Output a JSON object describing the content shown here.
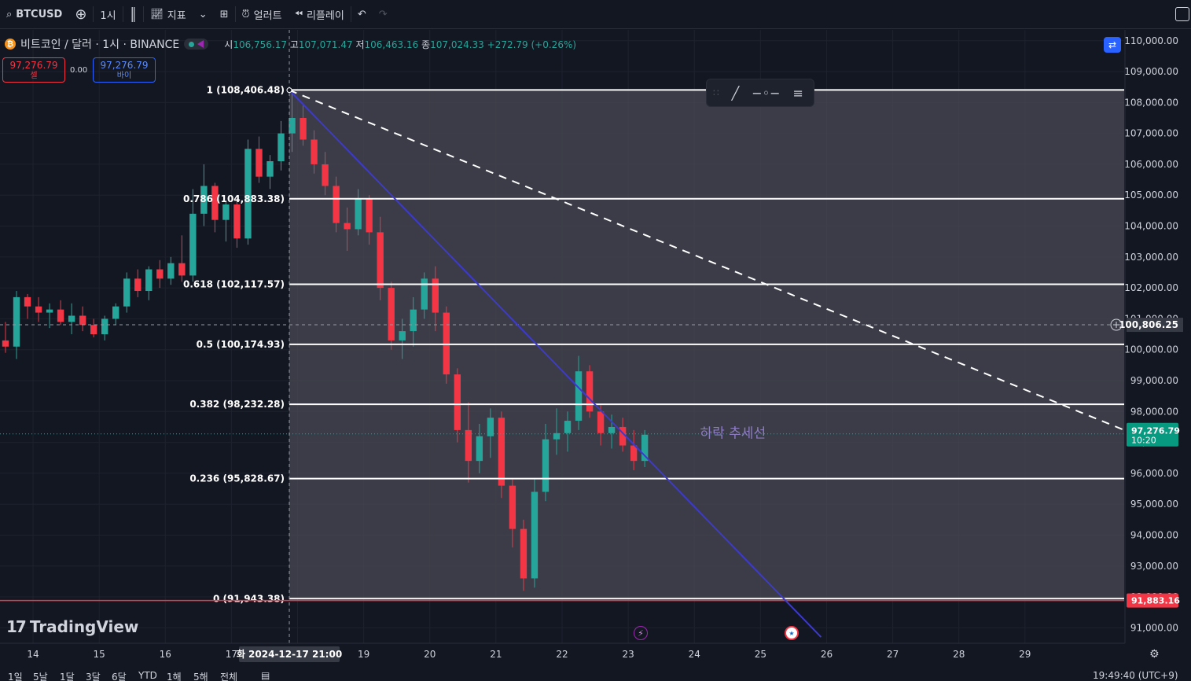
{
  "toolbar": {
    "symbol": "BTCUSD",
    "interval": "1시",
    "indicators": "지표",
    "alerts": "얼러트",
    "replay": "리플레이"
  },
  "legend": {
    "title": "비트코인 / 달러 · 1시 · BINANCE",
    "open_label": "시",
    "open": "106,756.17",
    "high_label": "고",
    "high": "107,071.47",
    "low_label": "저",
    "low": "106,463.16",
    "close_label": "종",
    "close": "107,024.33",
    "change": "+272.79 (+0.26%)"
  },
  "trade": {
    "sell_price": "97,276.79",
    "sell_label": "셀",
    "spread": "0.00",
    "buy_price": "97,276.79",
    "buy_label": "바이"
  },
  "watermark": "TradingView",
  "bottom_ranges": [
    "1일",
    "5날",
    "1달",
    "3달",
    "6달",
    "YTD",
    "1해",
    "5해",
    "전체"
  ],
  "clock": "19:49:40 (UTC+9)",
  "colors": {
    "up": "#26a69a",
    "down": "#f23645",
    "fib_line": "#ffffff",
    "trend": "#3d3acb",
    "fib_zone": "#4a4a54",
    "price_tag": "#089981",
    "low_tag": "#f23645"
  },
  "chart_data": {
    "type": "candlestick",
    "price_axis": {
      "ylim": [
        90500,
        110350
      ],
      "ticks": [
        110000,
        109000,
        108000,
        107000,
        106000,
        105000,
        104000,
        103000,
        102000,
        101000,
        100000,
        99000,
        98000,
        97000,
        96000,
        95000,
        94000,
        93000,
        92000,
        91000
      ],
      "tick_labels": [
        "110,000.00",
        "109,000.00",
        "108,000.00",
        "107,000.00",
        "106,000.00",
        "105,000.00",
        "104,000.00",
        "103,000.00",
        "102,000.00",
        "101,000.00",
        "100,000.00",
        "99,000.00",
        "98,000.00",
        "97,000.00",
        "96,000.00",
        "95,000.00",
        "94,000.00",
        "93,000.00",
        "92,000.00",
        "91,000.00"
      ]
    },
    "time_axis": {
      "start": "2024-12-13T12:00",
      "end": "2024-12-30T12:00",
      "tick_labels": [
        "14",
        "15",
        "16",
        "17",
        "18",
        "19",
        "20",
        "21",
        "22",
        "23",
        "24",
        "25",
        "26",
        "27",
        "28",
        "29"
      ],
      "crosshair_label": "화 2024-12-17  21:00"
    },
    "crosshair": {
      "time": "2024-12-17T21:00",
      "price": 100806.25,
      "price_label": "100,806.25"
    },
    "last_price": {
      "value": 97276.79,
      "label": "97,276.79",
      "countdown": "10:20"
    },
    "low_marker": {
      "value": 91883.16,
      "label": "91,883.16"
    },
    "fibonacci": {
      "start_time": "2024-12-17T21:00",
      "levels": [
        {
          "ratio": "1",
          "price": 108406.48,
          "label": "1 (108,406.48)"
        },
        {
          "ratio": "0.786",
          "price": 104883.38,
          "label": "0.786 (104,883.38)"
        },
        {
          "ratio": "0.618",
          "price": 102117.57,
          "label": "0.618 (102,117.57)"
        },
        {
          "ratio": "0.5",
          "price": 100174.93,
          "label": "0.5 (100,174.93)"
        },
        {
          "ratio": "0.382",
          "price": 98232.28,
          "label": "0.382 (98,232.28)"
        },
        {
          "ratio": "0.236",
          "price": 95828.67,
          "label": "0.236 (95,828.67)"
        },
        {
          "ratio": "0",
          "price": 91943.38,
          "label": "0 (91,943.38)"
        }
      ]
    },
    "trendlines": [
      {
        "name": "downtrend-solid",
        "style": "solid",
        "from": {
          "time": "2024-12-17T21:00",
          "price": 108400
        },
        "to": {
          "time": "2024-12-25T22:00",
          "price": 90700
        }
      },
      {
        "name": "downtrend-dashed",
        "style": "dashed",
        "from": {
          "time": "2024-12-17T21:00",
          "price": 108400
        },
        "to": {
          "time": "2024-12-30T12:00",
          "price": 97400
        }
      }
    ],
    "annotation": {
      "text": "하락 추세선",
      "time": "2024-12-24T14:00",
      "price": 97150
    },
    "candles_4h": [
      [
        "2024-12-13T12:00",
        100300,
        100900,
        99900,
        100100
      ],
      [
        "2024-12-13T16:00",
        100100,
        101900,
        99700,
        101700
      ],
      [
        "2024-12-13T20:00",
        101700,
        101800,
        101000,
        101400
      ],
      [
        "2024-12-14T00:00",
        101400,
        101700,
        100900,
        101200
      ],
      [
        "2024-12-14T04:00",
        101200,
        101500,
        100700,
        101300
      ],
      [
        "2024-12-14T08:00",
        101300,
        101600,
        100800,
        100900
      ],
      [
        "2024-12-14T12:00",
        100900,
        101500,
        100500,
        101100
      ],
      [
        "2024-12-14T16:00",
        101100,
        101400,
        100600,
        100800
      ],
      [
        "2024-12-14T20:00",
        100800,
        101000,
        100400,
        100500
      ],
      [
        "2024-12-15T00:00",
        100500,
        101100,
        100300,
        101000
      ],
      [
        "2024-12-15T04:00",
        101000,
        101500,
        100800,
        101400
      ],
      [
        "2024-12-15T08:00",
        101400,
        102500,
        101200,
        102300
      ],
      [
        "2024-12-15T12:00",
        102300,
        102600,
        101700,
        101900
      ],
      [
        "2024-12-15T16:00",
        101900,
        102700,
        101600,
        102600
      ],
      [
        "2024-12-15T20:00",
        102600,
        102900,
        102000,
        102300
      ],
      [
        "2024-12-16T00:00",
        102300,
        103000,
        102100,
        102800
      ],
      [
        "2024-12-16T04:00",
        102800,
        103700,
        102200,
        102400
      ],
      [
        "2024-12-16T08:00",
        102400,
        105200,
        102200,
        104400
      ],
      [
        "2024-12-16T12:00",
        104400,
        106000,
        104000,
        105300
      ],
      [
        "2024-12-16T16:00",
        105300,
        105400,
        103800,
        104200
      ],
      [
        "2024-12-16T20:00",
        104200,
        104800,
        103500,
        104700
      ],
      [
        "2024-12-17T00:00",
        104700,
        104900,
        103300,
        103600
      ],
      [
        "2024-12-17T04:00",
        103600,
        106800,
        103400,
        106500
      ],
      [
        "2024-12-17T08:00",
        106500,
        106900,
        105400,
        105600
      ],
      [
        "2024-12-17T12:00",
        105600,
        106300,
        105200,
        106100
      ],
      [
        "2024-12-17T16:00",
        106100,
        107400,
        105800,
        107000
      ],
      [
        "2024-12-17T20:00",
        107000,
        108400,
        106400,
        107500
      ],
      [
        "2024-12-18T00:00",
        107500,
        107900,
        106600,
        106800
      ],
      [
        "2024-12-18T04:00",
        106800,
        107100,
        105700,
        106000
      ],
      [
        "2024-12-18T08:00",
        106000,
        106400,
        105000,
        105300
      ],
      [
        "2024-12-18T12:00",
        105300,
        105600,
        103800,
        104100
      ],
      [
        "2024-12-18T16:00",
        104100,
        104600,
        103200,
        103900
      ],
      [
        "2024-12-18T20:00",
        103900,
        105200,
        103700,
        104900
      ],
      [
        "2024-12-19T00:00",
        104900,
        105000,
        103400,
        103800
      ],
      [
        "2024-12-19T04:00",
        103800,
        104300,
        101600,
        102000
      ],
      [
        "2024-12-19T08:00",
        102000,
        102200,
        100000,
        100300
      ],
      [
        "2024-12-19T12:00",
        100300,
        101000,
        99700,
        100600
      ],
      [
        "2024-12-19T16:00",
        100600,
        101700,
        100100,
        101300
      ],
      [
        "2024-12-19T20:00",
        101300,
        102500,
        101000,
        102300
      ],
      [
        "2024-12-20T00:00",
        102300,
        102700,
        100600,
        101200
      ],
      [
        "2024-12-20T04:00",
        101200,
        101400,
        98900,
        99200
      ],
      [
        "2024-12-20T08:00",
        99200,
        99400,
        97000,
        97400
      ],
      [
        "2024-12-20T12:00",
        97400,
        98300,
        95700,
        96400
      ],
      [
        "2024-12-20T16:00",
        96400,
        97600,
        96000,
        97200
      ],
      [
        "2024-12-20T20:00",
        97200,
        98100,
        96500,
        97800
      ],
      [
        "2024-12-21T00:00",
        97800,
        98000,
        95200,
        95600
      ],
      [
        "2024-12-21T04:00",
        95600,
        95800,
        93600,
        94200
      ],
      [
        "2024-12-21T08:00",
        94200,
        94500,
        92200,
        92600
      ],
      [
        "2024-12-21T12:00",
        92600,
        95800,
        92300,
        95400
      ],
      [
        "2024-12-21T16:00",
        95400,
        97600,
        95100,
        97100
      ],
      [
        "2024-12-21T20:00",
        97100,
        98100,
        96600,
        97300
      ],
      [
        "2024-12-22T00:00",
        97300,
        98000,
        96700,
        97700
      ],
      [
        "2024-12-22T04:00",
        97700,
        99800,
        97400,
        99300
      ],
      [
        "2024-12-22T08:00",
        99300,
        99500,
        97800,
        98000
      ],
      [
        "2024-12-22T12:00",
        98000,
        98200,
        96900,
        97300
      ],
      [
        "2024-12-22T16:00",
        97300,
        97900,
        96800,
        97500
      ],
      [
        "2024-12-22T20:00",
        97500,
        97800,
        96700,
        96900
      ],
      [
        "2024-12-23T00:00",
        96900,
        97400,
        96100,
        96400
      ],
      [
        "2024-12-23T04:00",
        96400,
        97400,
        96200,
        97250
      ]
    ]
  }
}
